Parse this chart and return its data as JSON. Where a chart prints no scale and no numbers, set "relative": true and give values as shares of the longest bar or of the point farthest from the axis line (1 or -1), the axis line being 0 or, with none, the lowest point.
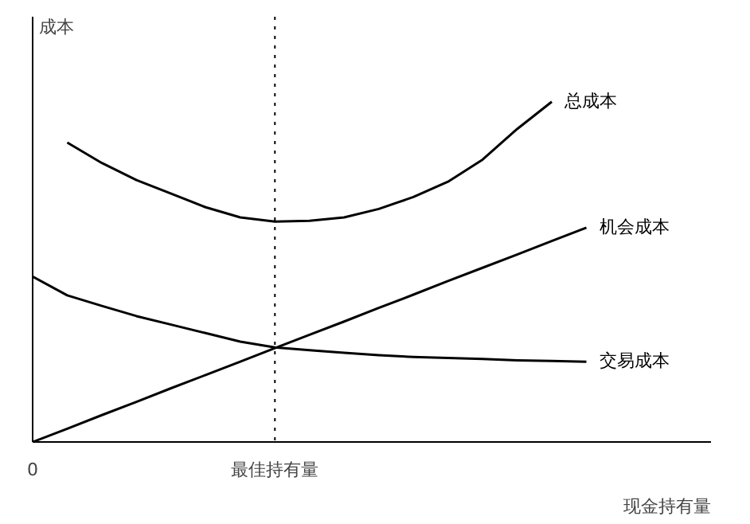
{
  "chart_data": {
    "type": "line",
    "relative": true,
    "xlabel": "现金持有量",
    "ylabel": "成本",
    "categories": [
      "0",
      null,
      null,
      null,
      null,
      null,
      null,
      "最佳持有量",
      null,
      null,
      null,
      null,
      null,
      null,
      null,
      null,
      null
    ],
    "grid": false,
    "legend": false,
    "marker": "none",
    "line_style": "solid",
    "ref_lines": [
      {
        "axis": "x",
        "value": "最佳持有量",
        "line_style": "dotted",
        "color": "#000000"
      }
    ],
    "series": [
      {
        "name": "总成本",
        "color": "#000000",
        "values": [
          null,
          0.88,
          0.82,
          0.77,
          0.73,
          0.69,
          0.66,
          0.648,
          0.65,
          0.66,
          0.685,
          0.72,
          0.765,
          0.83,
          0.92,
          1.0,
          null
        ]
      },
      {
        "name": "机会成本",
        "color": "#000000",
        "values": [
          0,
          0.039,
          0.079,
          0.118,
          0.158,
          0.197,
          0.236,
          0.276,
          0.315,
          0.354,
          0.394,
          0.433,
          0.473,
          0.512,
          0.551,
          0.591,
          0.63
        ]
      },
      {
        "name": "交易成本",
        "color": "#000000",
        "values": [
          0.486,
          0.431,
          0.4,
          0.37,
          0.345,
          0.32,
          0.295,
          0.278,
          0.27,
          0.262,
          0.255,
          0.25,
          0.247,
          0.244,
          0.24,
          0.238,
          0.236
        ]
      }
    ]
  }
}
